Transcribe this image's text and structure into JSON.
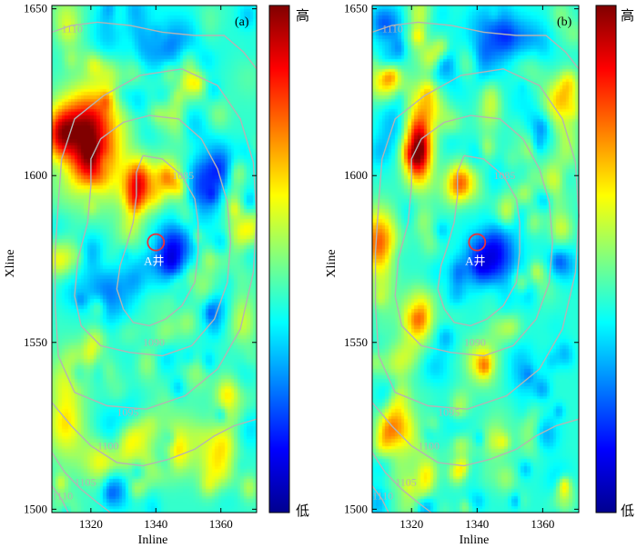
{
  "chart_data": [
    {
      "type": "heatmap",
      "panel_label": "(a)",
      "xlabel": "Inline",
      "ylabel": "Xline",
      "xlim": [
        1308,
        1371
      ],
      "ylim": [
        1499,
        1651
      ],
      "xticks": [
        "1320",
        "1340",
        "1360"
      ],
      "yticks": [
        "1500",
        "1550",
        "1600",
        "1650"
      ],
      "colorbar": {
        "colors": [
          "#00008f",
          "#0000ff",
          "#0080ff",
          "#00ffff",
          "#80ff80",
          "#ffff00",
          "#ff8000",
          "#ff0000",
          "#800000"
        ],
        "top_label": "高",
        "bottom_label": "低"
      },
      "well": {
        "label": "A井",
        "inline": 1340,
        "xline": 1580
      },
      "contours": [
        {
          "label": "1085",
          "label_at": [
            1345,
            1599
          ],
          "points": [
            [
              1336,
              1606
            ],
            [
              1342,
              1605
            ],
            [
              1348,
              1600
            ],
            [
              1352,
              1593
            ],
            [
              1353,
              1586
            ],
            [
              1353,
              1577
            ],
            [
              1352,
              1568
            ],
            [
              1348,
              1561
            ],
            [
              1343,
              1557
            ],
            [
              1338,
              1555
            ],
            [
              1333,
              1556
            ],
            [
              1330,
              1560
            ],
            [
              1328,
              1566
            ],
            [
              1329,
              1573
            ],
            [
              1331,
              1579
            ],
            [
              1333,
              1586
            ],
            [
              1334,
              1594
            ],
            [
              1334,
              1601
            ],
            [
              1336,
              1606
            ]
          ]
        },
        {
          "label": "1090",
          "label_at": [
            1336,
            1549
          ],
          "points": [
            [
              1323,
              1611
            ],
            [
              1330,
              1616
            ],
            [
              1338,
              1618
            ],
            [
              1347,
              1617
            ],
            [
              1354,
              1611
            ],
            [
              1359,
              1602
            ],
            [
              1362,
              1592
            ],
            [
              1363,
              1580
            ],
            [
              1362,
              1568
            ],
            [
              1358,
              1557
            ],
            [
              1351,
              1549
            ],
            [
              1342,
              1546
            ],
            [
              1332,
              1547
            ],
            [
              1323,
              1549
            ],
            [
              1317,
              1555
            ],
            [
              1315,
              1564
            ],
            [
              1316,
              1575
            ],
            [
              1319,
              1586
            ],
            [
              1320,
              1597
            ],
            [
              1320,
              1605
            ],
            [
              1323,
              1611
            ]
          ]
        },
        {
          "label": "1095",
          "label_at": [
            1328,
            1528
          ],
          "points": [
            [
              1324,
              1624
            ],
            [
              1335,
              1630
            ],
            [
              1348,
              1632
            ],
            [
              1359,
              1627
            ],
            [
              1366,
              1617
            ],
            [
              1370,
              1604
            ],
            [
              1371,
              1588
            ],
            [
              1370,
              1571
            ],
            [
              1366,
              1554
            ],
            [
              1359,
              1542
            ],
            [
              1349,
              1534
            ],
            [
              1337,
              1530
            ],
            [
              1325,
              1531
            ],
            [
              1315,
              1535
            ],
            [
              1310,
              1546
            ],
            [
              1309,
              1561
            ],
            [
              1309,
              1577
            ],
            [
              1310,
              1592
            ],
            [
              1311,
              1605
            ],
            [
              1315,
              1617
            ],
            [
              1324,
              1624
            ]
          ]
        },
        {
          "label": "1100",
          "label_at": [
            1322,
            1518
          ],
          "points": [
            [
              1308,
              1532
            ],
            [
              1314,
              1525
            ],
            [
              1320,
              1519
            ],
            [
              1328,
              1514
            ],
            [
              1336,
              1513
            ],
            [
              1344,
              1515
            ],
            [
              1352,
              1518
            ],
            [
              1358,
              1522
            ],
            [
              1364,
              1525
            ],
            [
              1371,
              1527
            ]
          ]
        },
        {
          "label": "1105",
          "label_at": [
            1315,
            1507
          ],
          "points": [
            [
              1308,
              1517
            ],
            [
              1312,
              1511
            ],
            [
              1317,
              1506
            ],
            [
              1322,
              1502
            ],
            [
              1326,
              1499
            ]
          ]
        },
        {
          "label": "1110",
          "label_at": [
            1308,
            1503
          ],
          "points": [
            [
              1308,
              1507
            ],
            [
              1311,
              1503
            ],
            [
              1313,
              1499
            ]
          ]
        },
        {
          "label": "1110",
          "label_at": [
            1311,
            1643
          ],
          "points": [
            [
              1308,
              1643
            ],
            [
              1314,
              1645
            ],
            [
              1322,
              1646
            ],
            [
              1332,
              1645
            ],
            [
              1342,
              1643
            ],
            [
              1352,
              1642
            ],
            [
              1361,
              1642
            ],
            [
              1367,
              1637
            ],
            [
              1371,
              1632
            ]
          ]
        }
      ],
      "anomalies": [
        {
          "inline": 1320,
          "xline": 1610,
          "sx": 6,
          "sy": 10,
          "amp": 3.4
        },
        {
          "inline": 1311,
          "xline": 1612,
          "sx": 4,
          "sy": 6,
          "amp": 2.0
        },
        {
          "inline": 1335,
          "xline": 1598,
          "sx": 3,
          "sy": 5,
          "amp": 2.0
        },
        {
          "inline": 1312,
          "xline": 1530,
          "sx": 4,
          "sy": 9,
          "amp": 1.5
        },
        {
          "inline": 1326,
          "xline": 1515,
          "sx": 6,
          "sy": 5,
          "amp": 1.1
        },
        {
          "inline": 1350,
          "xline": 1520,
          "sx": 7,
          "sy": 6,
          "amp": 0.9
        },
        {
          "inline": 1345,
          "xline": 1575,
          "sx": 5,
          "sy": 7,
          "amp": -1.5
        },
        {
          "inline": 1325,
          "xline": 1565,
          "sx": 5,
          "sy": 6,
          "amp": -1.0
        },
        {
          "inline": 1340,
          "xline": 1640,
          "sx": 10,
          "sy": 6,
          "amp": -1.1
        },
        {
          "inline": 1355,
          "xline": 1600,
          "sx": 5,
          "sy": 8,
          "amp": -1.2
        }
      ],
      "seed": 11
    },
    {
      "type": "heatmap",
      "panel_label": "(b)",
      "xlabel": "Inline",
      "ylabel": "Xline",
      "xlim": [
        1308,
        1371
      ],
      "ylim": [
        1499,
        1651
      ],
      "xticks": [
        "1320",
        "1340",
        "1360"
      ],
      "yticks": [
        "1500",
        "1550",
        "1600",
        "1650"
      ],
      "colorbar": {
        "colors": [
          "#00008f",
          "#0000ff",
          "#0080ff",
          "#00ffff",
          "#80ff80",
          "#ffff00",
          "#ff8000",
          "#ff0000",
          "#800000"
        ],
        "top_label": "高",
        "bottom_label": "低"
      },
      "well": {
        "label": "A井",
        "inline": 1340,
        "xline": 1580
      },
      "contours": [
        {
          "label": "1085",
          "label_at": [
            1345,
            1599
          ],
          "points": [
            [
              1336,
              1606
            ],
            [
              1342,
              1605
            ],
            [
              1348,
              1600
            ],
            [
              1352,
              1593
            ],
            [
              1353,
              1586
            ],
            [
              1353,
              1577
            ],
            [
              1352,
              1568
            ],
            [
              1348,
              1561
            ],
            [
              1343,
              1557
            ],
            [
              1338,
              1555
            ],
            [
              1333,
              1556
            ],
            [
              1330,
              1560
            ],
            [
              1328,
              1566
            ],
            [
              1329,
              1573
            ],
            [
              1331,
              1579
            ],
            [
              1333,
              1586
            ],
            [
              1334,
              1594
            ],
            [
              1334,
              1601
            ],
            [
              1336,
              1606
            ]
          ]
        },
        {
          "label": "1090",
          "label_at": [
            1336,
            1549
          ],
          "points": [
            [
              1323,
              1611
            ],
            [
              1330,
              1616
            ],
            [
              1338,
              1618
            ],
            [
              1347,
              1617
            ],
            [
              1354,
              1611
            ],
            [
              1359,
              1602
            ],
            [
              1362,
              1592
            ],
            [
              1363,
              1580
            ],
            [
              1362,
              1568
            ],
            [
              1358,
              1557
            ],
            [
              1351,
              1549
            ],
            [
              1342,
              1546
            ],
            [
              1332,
              1547
            ],
            [
              1323,
              1549
            ],
            [
              1317,
              1555
            ],
            [
              1315,
              1564
            ],
            [
              1316,
              1575
            ],
            [
              1319,
              1586
            ],
            [
              1320,
              1597
            ],
            [
              1320,
              1605
            ],
            [
              1323,
              1611
            ]
          ]
        },
        {
          "label": "1095",
          "label_at": [
            1328,
            1528
          ],
          "points": [
            [
              1324,
              1624
            ],
            [
              1335,
              1630
            ],
            [
              1348,
              1632
            ],
            [
              1359,
              1627
            ],
            [
              1366,
              1617
            ],
            [
              1370,
              1604
            ],
            [
              1371,
              1588
            ],
            [
              1370,
              1571
            ],
            [
              1366,
              1554
            ],
            [
              1359,
              1542
            ],
            [
              1349,
              1534
            ],
            [
              1337,
              1530
            ],
            [
              1325,
              1531
            ],
            [
              1315,
              1535
            ],
            [
              1310,
              1546
            ],
            [
              1309,
              1561
            ],
            [
              1309,
              1577
            ],
            [
              1310,
              1592
            ],
            [
              1311,
              1605
            ],
            [
              1315,
              1617
            ],
            [
              1324,
              1624
            ]
          ]
        },
        {
          "label": "1100",
          "label_at": [
            1322,
            1518
          ],
          "points": [
            [
              1308,
              1532
            ],
            [
              1314,
              1525
            ],
            [
              1320,
              1519
            ],
            [
              1328,
              1514
            ],
            [
              1336,
              1513
            ],
            [
              1344,
              1515
            ],
            [
              1352,
              1518
            ],
            [
              1358,
              1522
            ],
            [
              1364,
              1525
            ],
            [
              1371,
              1527
            ]
          ]
        },
        {
          "label": "1105",
          "label_at": [
            1315,
            1507
          ],
          "points": [
            [
              1308,
              1517
            ],
            [
              1312,
              1511
            ],
            [
              1317,
              1506
            ],
            [
              1322,
              1502
            ],
            [
              1326,
              1499
            ]
          ]
        },
        {
          "label": "1110",
          "label_at": [
            1308,
            1503
          ],
          "points": [
            [
              1308,
              1507
            ],
            [
              1311,
              1503
            ],
            [
              1313,
              1499
            ]
          ]
        },
        {
          "label": "1110",
          "label_at": [
            1311,
            1643
          ],
          "points": [
            [
              1308,
              1643
            ],
            [
              1314,
              1645
            ],
            [
              1322,
              1646
            ],
            [
              1332,
              1645
            ],
            [
              1342,
              1643
            ],
            [
              1352,
              1642
            ],
            [
              1361,
              1642
            ],
            [
              1367,
              1637
            ],
            [
              1371,
              1632
            ]
          ]
        }
      ],
      "anomalies": [
        {
          "inline": 1322,
          "xline": 1608,
          "sx": 3,
          "sy": 7,
          "amp": 3.0
        },
        {
          "inline": 1310,
          "xline": 1580,
          "sx": 4,
          "sy": 7,
          "amp": 1.8
        },
        {
          "inline": 1322,
          "xline": 1558,
          "sx": 3,
          "sy": 5,
          "amp": 1.9
        },
        {
          "inline": 1335,
          "xline": 1598,
          "sx": 3,
          "sy": 4,
          "amp": 1.6
        },
        {
          "inline": 1312,
          "xline": 1628,
          "sx": 4,
          "sy": 4,
          "amp": 1.2
        },
        {
          "inline": 1366,
          "xline": 1622,
          "sx": 4,
          "sy": 5,
          "amp": 1.3
        },
        {
          "inline": 1315,
          "xline": 1525,
          "sx": 4,
          "sy": 6,
          "amp": 1.2
        },
        {
          "inline": 1345,
          "xline": 1575,
          "sx": 5,
          "sy": 7,
          "amp": -1.4
        },
        {
          "inline": 1350,
          "xline": 1640,
          "sx": 8,
          "sy": 5,
          "amp": -1.1
        }
      ],
      "seed": 29
    }
  ]
}
